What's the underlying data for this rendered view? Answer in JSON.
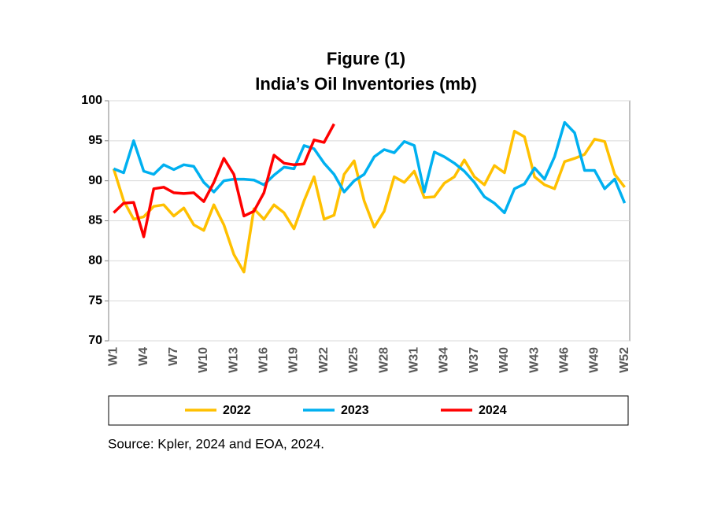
{
  "chart_data": {
    "type": "line",
    "title": "Figure (1)",
    "subtitle": "India’s Oil Inventories (mb)",
    "source": "Source: Kpler, 2024 and EOA, 2024.",
    "categories": [
      "W1",
      null,
      null,
      "W4",
      null,
      null,
      "W7",
      null,
      null,
      "W10",
      null,
      null,
      "W13",
      null,
      null,
      "W16",
      null,
      null,
      "W19",
      null,
      null,
      "W22",
      null,
      null,
      "W25",
      null,
      null,
      "W28",
      null,
      null,
      "W31",
      null,
      null,
      "W34",
      null,
      null,
      "W37",
      null,
      null,
      "W40",
      null,
      null,
      "W43",
      null,
      null,
      "W46",
      null,
      null,
      "W49",
      null,
      null,
      "W52"
    ],
    "series": [
      {
        "name": "2022",
        "color": "#ffc000",
        "values": [
          91.5,
          87.5,
          85.2,
          85.5,
          86.8,
          87,
          85.6,
          86.6,
          84.5,
          83.8,
          87,
          84.5,
          80.8,
          78.6,
          86.5,
          85.2,
          87,
          86,
          84,
          87.5,
          90.5,
          85.2,
          85.7,
          90.8,
          92.5,
          87.5,
          84.2,
          86.2,
          90.5,
          89.8,
          91.2,
          87.9,
          88,
          89.7,
          90.5,
          92.6,
          90.5,
          89.5,
          91.9,
          91,
          96.2,
          95.5,
          90.5,
          89.5,
          89,
          92.4,
          92.8,
          93.3,
          95.2,
          94.9,
          90.8,
          89.2
        ]
      },
      {
        "name": "2023",
        "color": "#00b0f0",
        "values": [
          91.5,
          91,
          95,
          91.2,
          90.8,
          92,
          91.4,
          92,
          91.8,
          89.8,
          88.6,
          90,
          90.2,
          90.2,
          90.1,
          89.5,
          90.7,
          91.7,
          91.5,
          94.4,
          94,
          92.2,
          90.8,
          88.6,
          90,
          90.8,
          93,
          93.9,
          93.5,
          94.9,
          94.4,
          88.6,
          93.6,
          93,
          92.2,
          91.2,
          89.8,
          88,
          87.2,
          86,
          89,
          89.6,
          91.6,
          90.2,
          93,
          97.3,
          96,
          91.3,
          91.3,
          89,
          90.2,
          87.2
        ]
      },
      {
        "name": "2024",
        "color": "#ff0000",
        "values": [
          86,
          87.2,
          87.3,
          83,
          89,
          89.2,
          88.5,
          88.4,
          88.5,
          87.4,
          89.8,
          92.8,
          90.8,
          85.6,
          86.2,
          88.5,
          93.2,
          92.2,
          92,
          92.1,
          95.1,
          94.8,
          97.1,
          null,
          null,
          null,
          null,
          null,
          null,
          null,
          null,
          null,
          null,
          null,
          null,
          null,
          null,
          null,
          null,
          null,
          null,
          null,
          null,
          null,
          null,
          null,
          null,
          null,
          null,
          null,
          null,
          null
        ]
      }
    ],
    "ylim": [
      70,
      100
    ],
    "yticks": [
      70,
      75,
      80,
      85,
      90,
      95,
      100
    ],
    "grid": true
  }
}
